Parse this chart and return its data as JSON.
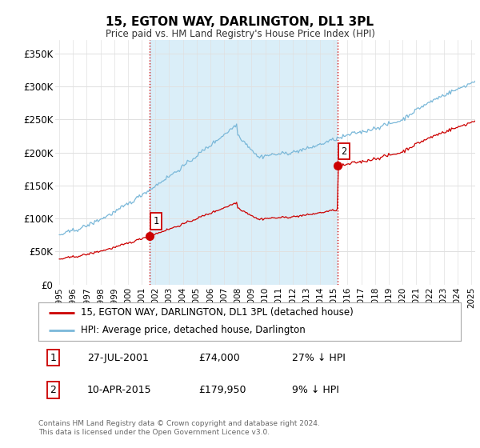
{
  "title": "15, EGTON WAY, DARLINGTON, DL1 3PL",
  "subtitle": "Price paid vs. HM Land Registry's House Price Index (HPI)",
  "ylabel_ticks": [
    "£0",
    "£50K",
    "£100K",
    "£150K",
    "£200K",
    "£250K",
    "£300K",
    "£350K"
  ],
  "ytick_values": [
    0,
    50000,
    100000,
    150000,
    200000,
    250000,
    300000,
    350000
  ],
  "ylim": [
    0,
    370000
  ],
  "xlim_start": 1994.7,
  "xlim_end": 2025.3,
  "purchase1_x": 2001.57,
  "purchase1_y": 74000,
  "purchase1_label": "1",
  "purchase2_x": 2015.27,
  "purchase2_y": 179950,
  "purchase2_label": "2",
  "hpi_color": "#7ab8d9",
  "hpi_fill_color": "#daeef8",
  "price_color": "#cc0000",
  "vline_color": "#cc0000",
  "vline_style": ":",
  "legend_line1": "15, EGTON WAY, DARLINGTON, DL1 3PL (detached house)",
  "legend_line2": "HPI: Average price, detached house, Darlington",
  "table_row1": [
    "1",
    "27-JUL-2001",
    "£74,000",
    "27% ↓ HPI"
  ],
  "table_row2": [
    "2",
    "10-APR-2015",
    "£179,950",
    "9% ↓ HPI"
  ],
  "footer": "Contains HM Land Registry data © Crown copyright and database right 2024.\nThis data is licensed under the Open Government Licence v3.0.",
  "background_color": "#ffffff",
  "grid_color": "#e0e0e0"
}
